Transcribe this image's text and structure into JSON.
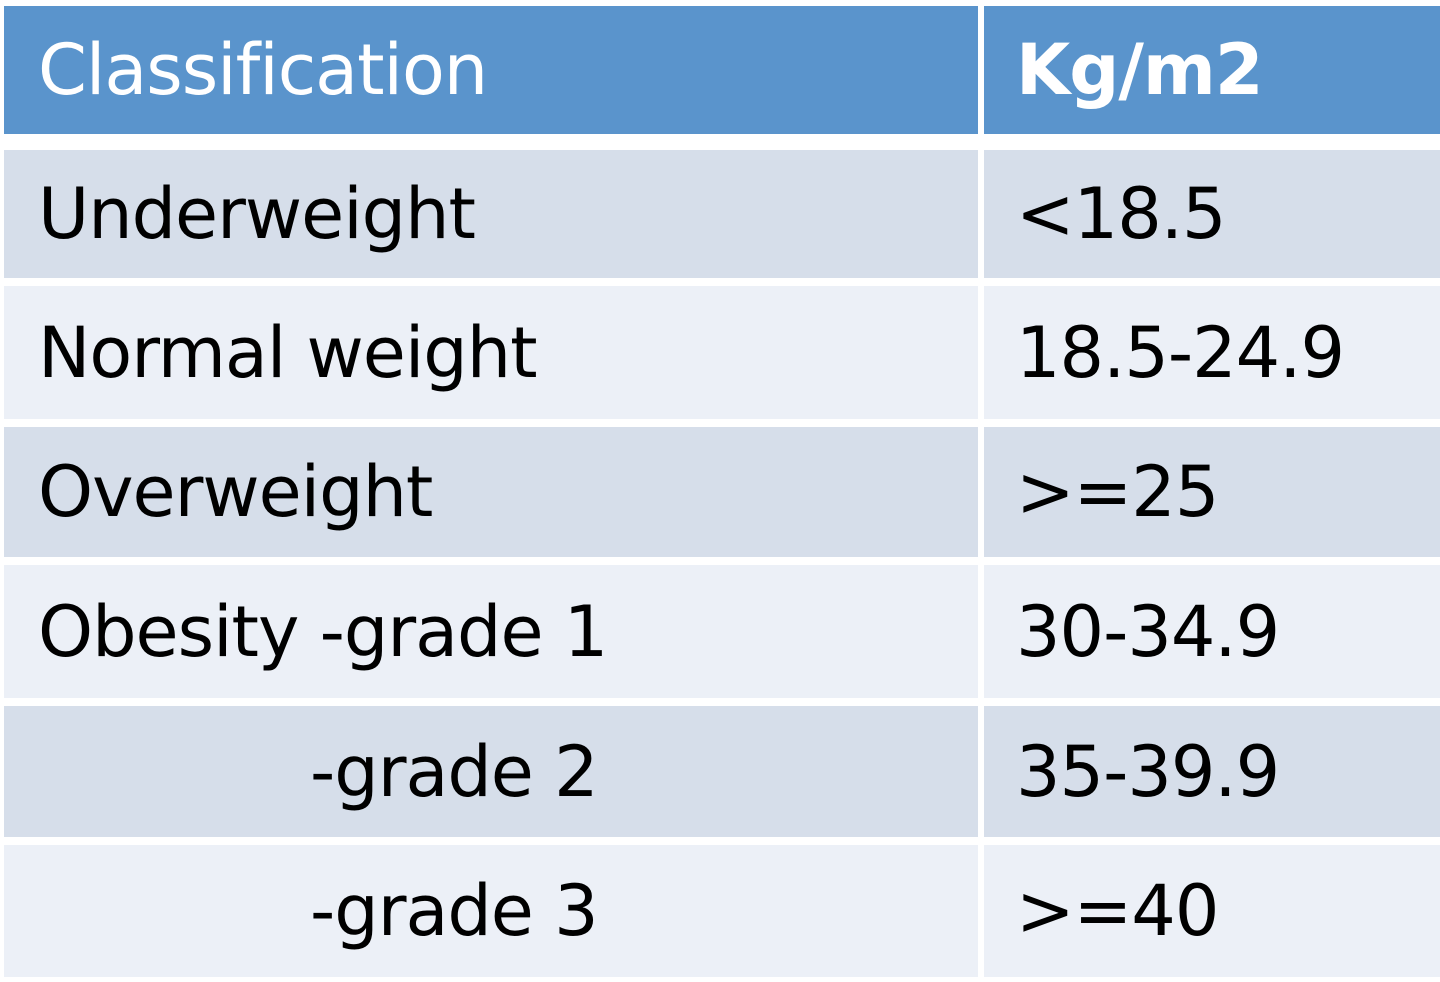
{
  "table": {
    "headers": [
      "Classification",
      "Kg/m2"
    ],
    "rows": [
      {
        "classification": "Underweight",
        "value": "<18.5"
      },
      {
        "classification": "Normal weight",
        "value": "18.5-24.9"
      },
      {
        "classification": "Overweight",
        "value": ">=25"
      },
      {
        "classification": "Obesity -grade 1",
        "value": "30-34.9"
      },
      {
        "classification": "-grade 2",
        "value": "35-39.9"
      },
      {
        "classification": "-grade 3",
        "value": ">=40"
      }
    ]
  },
  "colors": {
    "header_bg": "#5a94cc",
    "row_dark": "#d6deea",
    "row_light": "#ecf0f7"
  }
}
